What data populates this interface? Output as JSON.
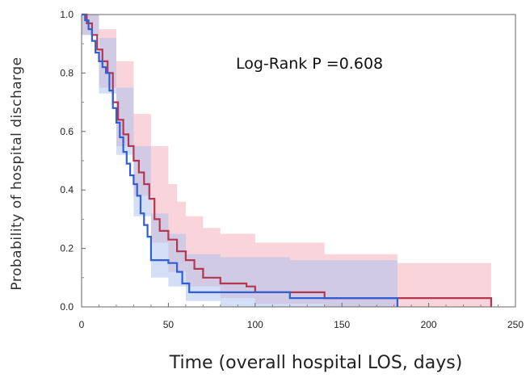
{
  "chart_data": {
    "type": "line",
    "title": "",
    "xlabel": "Time (overall hospital LOS, days)",
    "ylabel": "Probability of hospital discharge",
    "xlim": [
      0,
      250
    ],
    "ylim": [
      0,
      1
    ],
    "xticks": [
      0,
      50,
      100,
      150,
      200,
      250
    ],
    "yticks": [
      0.0,
      0.2,
      0.4,
      0.6,
      0.8,
      1.0
    ],
    "ytick_labels": [
      "0.0",
      "0.2",
      "0.4",
      "0.6",
      "0.8",
      "1.0"
    ],
    "grid": false,
    "legend": "none",
    "annotation": "Log-Rank P  =0.608",
    "series": [
      {
        "color": "#b5374f",
        "band_color": "#f3a9b5",
        "step": [
          [
            0,
            1.0
          ],
          [
            3,
            0.97
          ],
          [
            6,
            0.93
          ],
          [
            9,
            0.88
          ],
          [
            12,
            0.84
          ],
          [
            15,
            0.8
          ],
          [
            18,
            0.7
          ],
          [
            21,
            0.64
          ],
          [
            24,
            0.59
          ],
          [
            27,
            0.55
          ],
          [
            30,
            0.5
          ],
          [
            33,
            0.46
          ],
          [
            36,
            0.42
          ],
          [
            39,
            0.37
          ],
          [
            42,
            0.3
          ],
          [
            45,
            0.26
          ],
          [
            50,
            0.23
          ],
          [
            55,
            0.19
          ],
          [
            60,
            0.16
          ],
          [
            65,
            0.13
          ],
          [
            70,
            0.1
          ],
          [
            80,
            0.08
          ],
          [
            95,
            0.07
          ],
          [
            100,
            0.05
          ],
          [
            140,
            0.03
          ],
          [
            182,
            0.03
          ],
          [
            236,
            0.0
          ]
        ],
        "lower": [
          [
            0,
            0.93
          ],
          [
            10,
            0.75
          ],
          [
            20,
            0.55
          ],
          [
            30,
            0.38
          ],
          [
            40,
            0.22
          ],
          [
            50,
            0.12
          ],
          [
            60,
            0.07
          ],
          [
            80,
            0.03
          ],
          [
            100,
            0.01
          ],
          [
            140,
            0.0
          ],
          [
            236,
            0.0
          ]
        ],
        "upper": [
          [
            0,
            1.0
          ],
          [
            10,
            0.95
          ],
          [
            20,
            0.84
          ],
          [
            30,
            0.66
          ],
          [
            40,
            0.55
          ],
          [
            50,
            0.42
          ],
          [
            55,
            0.36
          ],
          [
            60,
            0.31
          ],
          [
            70,
            0.27
          ],
          [
            80,
            0.25
          ],
          [
            100,
            0.22
          ],
          [
            140,
            0.18
          ],
          [
            182,
            0.15
          ],
          [
            236,
            0.15
          ]
        ]
      },
      {
        "color": "#2e5fd4",
        "band_color": "#a8bff0",
        "step": [
          [
            0,
            1.0
          ],
          [
            2,
            0.98
          ],
          [
            4,
            0.95
          ],
          [
            6,
            0.91
          ],
          [
            8,
            0.87
          ],
          [
            10,
            0.84
          ],
          [
            12,
            0.82
          ],
          [
            14,
            0.8
          ],
          [
            16,
            0.74
          ],
          [
            18,
            0.68
          ],
          [
            20,
            0.63
          ],
          [
            22,
            0.58
          ],
          [
            24,
            0.53
          ],
          [
            26,
            0.49
          ],
          [
            28,
            0.45
          ],
          [
            30,
            0.42
          ],
          [
            32,
            0.38
          ],
          [
            34,
            0.32
          ],
          [
            36,
            0.28
          ],
          [
            38,
            0.24
          ],
          [
            40,
            0.16
          ],
          [
            45,
            0.16
          ],
          [
            50,
            0.15
          ],
          [
            55,
            0.12
          ],
          [
            58,
            0.08
          ],
          [
            62,
            0.05
          ],
          [
            120,
            0.03
          ],
          [
            182,
            0.0
          ]
        ],
        "lower": [
          [
            0,
            0.93
          ],
          [
            10,
            0.73
          ],
          [
            20,
            0.52
          ],
          [
            30,
            0.31
          ],
          [
            40,
            0.1
          ],
          [
            50,
            0.07
          ],
          [
            60,
            0.02
          ],
          [
            80,
            0.0
          ],
          [
            182,
            0.0
          ]
        ],
        "upper": [
          [
            0,
            1.0
          ],
          [
            10,
            0.92
          ],
          [
            20,
            0.75
          ],
          [
            30,
            0.55
          ],
          [
            40,
            0.32
          ],
          [
            50,
            0.25
          ],
          [
            60,
            0.18
          ],
          [
            80,
            0.17
          ],
          [
            120,
            0.16
          ],
          [
            182,
            0.15
          ]
        ]
      }
    ]
  }
}
